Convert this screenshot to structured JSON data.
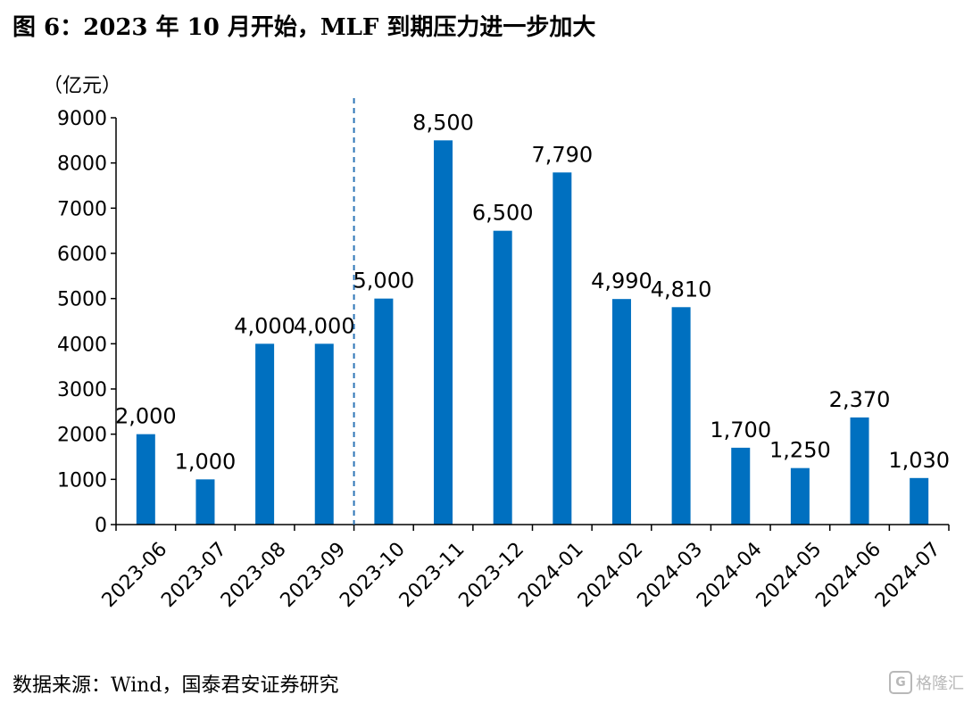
{
  "title": "图 6：2023 年 10 月开始，MLF 到期压力进一步加大",
  "source": "数据来源：Wind，国泰君安证券研究",
  "watermark": "格隆汇",
  "watermark_logo": "G",
  "colors": {
    "bar": "#0070C0",
    "divider": "#2E75B6",
    "axis": "#000000"
  },
  "chart_data": {
    "type": "bar",
    "unit_label": "（亿元）",
    "categories": [
      "2023-06",
      "2023-07",
      "2023-08",
      "2023-09",
      "2023-10",
      "2023-11",
      "2023-12",
      "2024-01",
      "2024-02",
      "2024-03",
      "2024-04",
      "2024-05",
      "2024-06",
      "2024-07"
    ],
    "values": [
      2000,
      1000,
      4000,
      4000,
      5000,
      8500,
      6500,
      7790,
      4990,
      4810,
      1700,
      1250,
      2370,
      1030
    ],
    "data_labels": [
      "2,000",
      "1,000",
      "4,000",
      "4,000",
      "5,000",
      "8,500",
      "6,500",
      "7,790",
      "4,990",
      "4,810",
      "1,700",
      "1,250",
      "2,370",
      "1,030"
    ],
    "ylim": [
      0,
      9000
    ],
    "yticks": [
      0,
      1000,
      2000,
      3000,
      4000,
      5000,
      6000,
      7000,
      8000,
      9000
    ],
    "divider_between": [
      "2023-09",
      "2023-10"
    ],
    "grid": false,
    "legend": "none"
  }
}
